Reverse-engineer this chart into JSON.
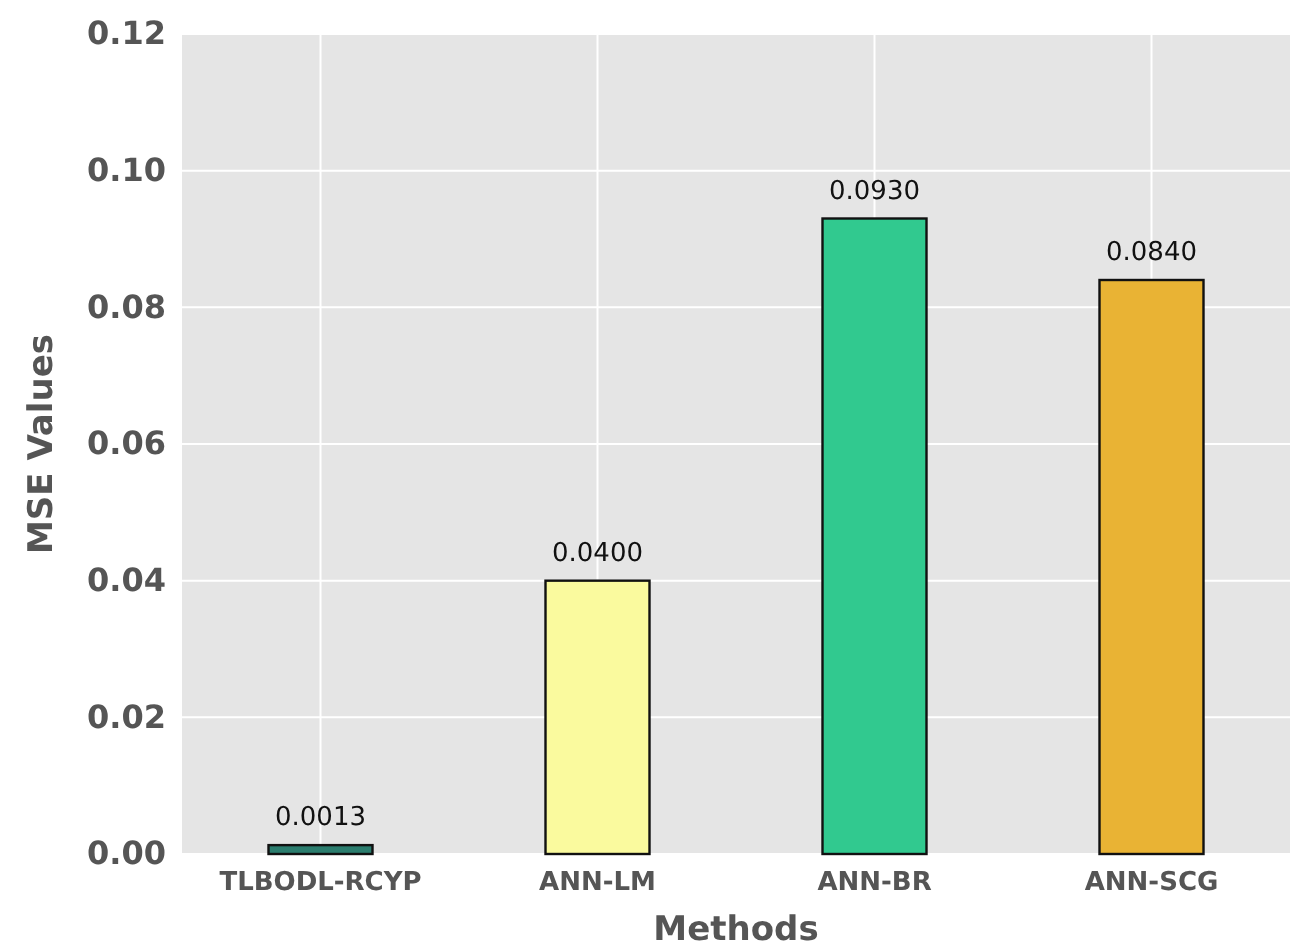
{
  "chart_data": {
    "type": "bar",
    "xlabel": "Methods",
    "ylabel": "MSE Values",
    "categories": [
      "TLBODL-RCYP",
      "ANN-LM",
      "ANN-BR",
      "ANN-SCG"
    ],
    "values": [
      0.0013,
      0.04,
      0.093,
      0.084
    ],
    "colors": [
      "#2b7d6e",
      "#fafa9e",
      "#31c98f",
      "#e9b334"
    ],
    "value_labels": [
      "0.0013",
      "0.0400",
      "0.0930",
      "0.0840"
    ],
    "ylim": [
      0,
      0.12
    ],
    "yticks": [
      {
        "value": 0,
        "label": "0.00"
      },
      {
        "value": 0.02,
        "label": "0.02"
      },
      {
        "value": 0.04,
        "label": "0.04"
      },
      {
        "value": 0.06,
        "label": "0.06"
      },
      {
        "value": 0.08,
        "label": "0.08"
      },
      {
        "value": 0.1,
        "label": "0.10"
      },
      {
        "value": 0.12,
        "label": "0.12"
      }
    ],
    "grid": true
  }
}
